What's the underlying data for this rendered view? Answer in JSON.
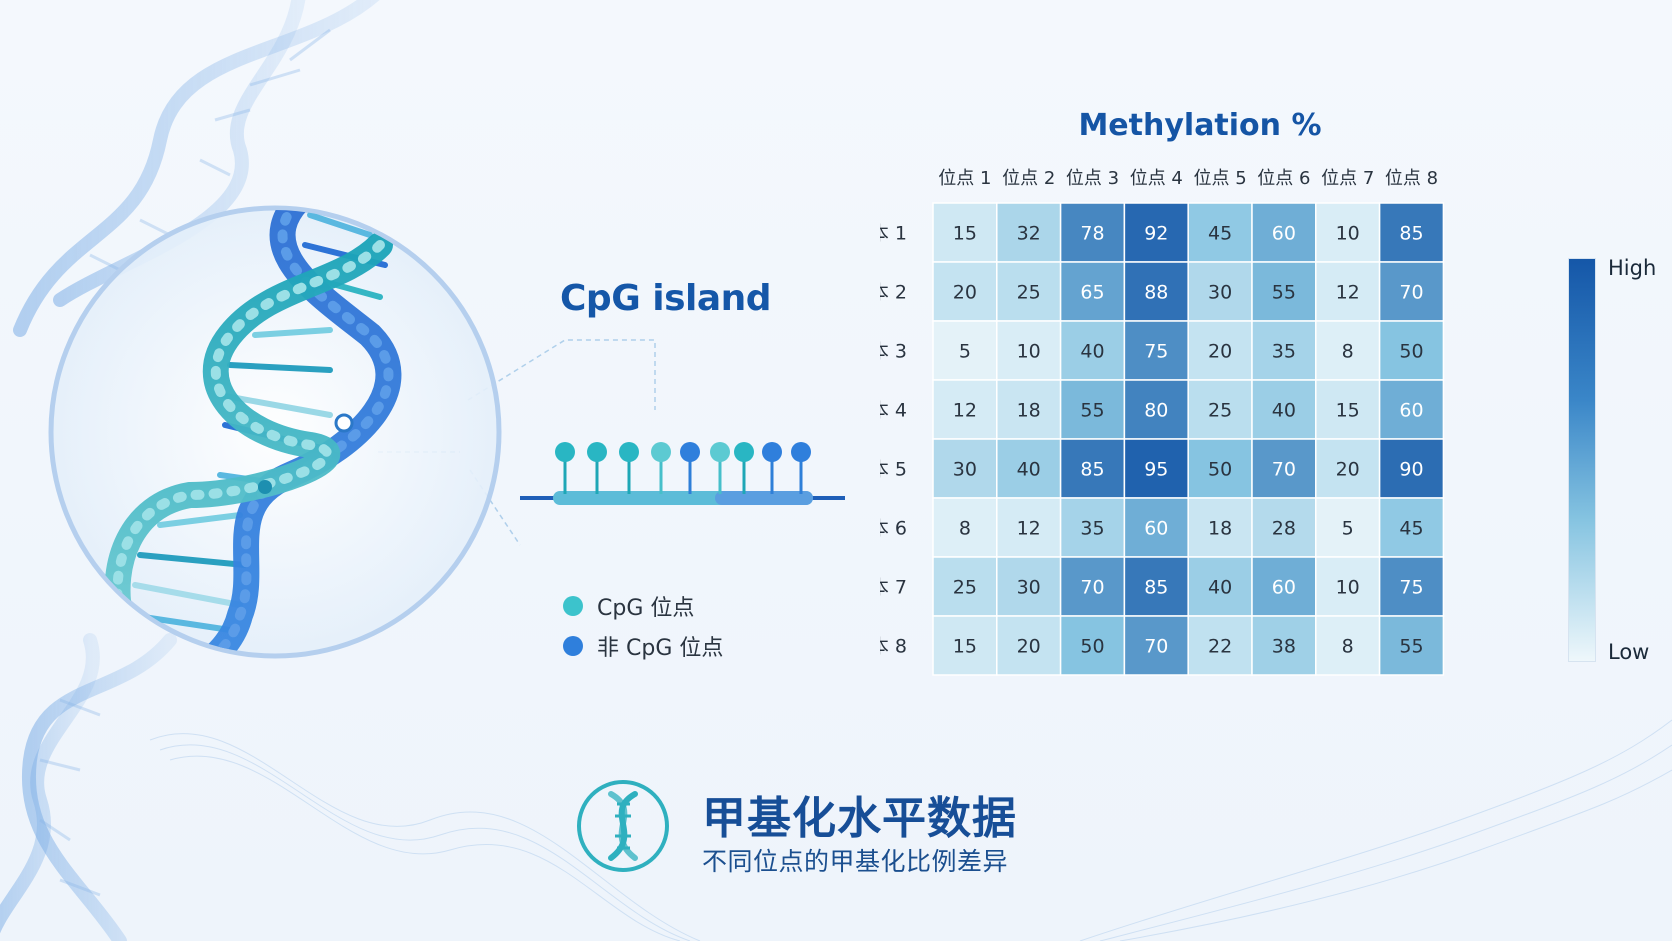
{
  "cpg": {
    "title": "CpG island",
    "legend": [
      {
        "label": "CpG 位点",
        "color": "#3cc3cc"
      },
      {
        "label": "非 CpG 位点",
        "color": "#2f7fdc"
      }
    ]
  },
  "chart_data": {
    "type": "heatmap",
    "title": "Methylation %",
    "columns": [
      "位点 1",
      "位点 2",
      "位点 3",
      "位点 4",
      "位点 5",
      "位点 6",
      "位点 7",
      "位点 8"
    ],
    "rows": [
      "样本 1",
      "样本 2",
      "样本 3",
      "样本 4",
      "样本 5",
      "样本 6",
      "样本 7",
      "样本 8"
    ],
    "values": [
      [
        15,
        32,
        78,
        92,
        45,
        60,
        10,
        85
      ],
      [
        20,
        25,
        65,
        88,
        30,
        55,
        12,
        70
      ],
      [
        5,
        10,
        40,
        75,
        20,
        35,
        8,
        50
      ],
      [
        12,
        18,
        55,
        80,
        25,
        40,
        15,
        60
      ],
      [
        30,
        40,
        85,
        95,
        50,
        70,
        20,
        90
      ],
      [
        8,
        12,
        35,
        60,
        18,
        28,
        5,
        45
      ],
      [
        25,
        30,
        70,
        85,
        40,
        60,
        10,
        75
      ],
      [
        15,
        20,
        50,
        70,
        22,
        38,
        8,
        55
      ]
    ],
    "colorbar": {
      "high_label": "High",
      "low_label": "Low"
    },
    "colors": {
      "low": "#eef7fb",
      "mid": "#86c4e1",
      "high": "#1557a8"
    }
  },
  "footer": {
    "title": "甲基化水平数据",
    "subtitle": "不同位点的甲基化比例差异",
    "icon": "dna-icon"
  }
}
